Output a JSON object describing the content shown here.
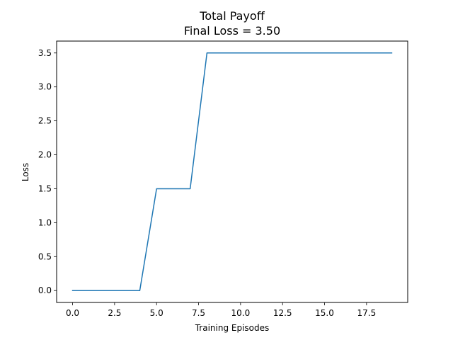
{
  "chart_data": {
    "type": "line",
    "title": "Total Payoff",
    "subtitle": "Final Loss = 3.50",
    "xlabel": "Training Episodes",
    "ylabel": "Loss",
    "xlim": [
      -0.95,
      19.95
    ],
    "ylim": [
      -0.175,
      3.675
    ],
    "x_ticks": [
      0.0,
      2.5,
      5.0,
      7.5,
      10.0,
      12.5,
      15.0,
      17.5
    ],
    "x_tick_labels": [
      "0.0",
      "2.5",
      "5.0",
      "7.5",
      "10.0",
      "12.5",
      "15.0",
      "17.5"
    ],
    "y_ticks": [
      0.0,
      0.5,
      1.0,
      1.5,
      2.0,
      2.5,
      3.0,
      3.5
    ],
    "y_tick_labels": [
      "0.0",
      "0.5",
      "1.0",
      "1.5",
      "2.0",
      "2.5",
      "3.0",
      "3.5"
    ],
    "grid": false,
    "series": [
      {
        "color": "#1f77b4",
        "x": [
          0,
          1,
          2,
          3,
          4,
          5,
          6,
          7,
          8,
          9,
          10,
          11,
          12,
          13,
          14,
          15,
          16,
          17,
          18,
          19
        ],
        "y": [
          0,
          0,
          0,
          0,
          0,
          1.5,
          1.5,
          1.5,
          3.5,
          3.5,
          3.5,
          3.5,
          3.5,
          3.5,
          3.5,
          3.5,
          3.5,
          3.5,
          3.5,
          3.5
        ]
      }
    ]
  }
}
